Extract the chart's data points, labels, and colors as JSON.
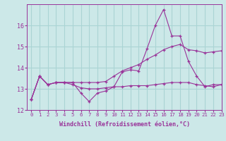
{
  "xlabel": "Windchill (Refroidissement éolien,°C)",
  "bg_color": "#cce8e8",
  "grid_color": "#aad4d4",
  "line_color": "#993399",
  "marker": "+",
  "xlim": [
    -0.5,
    23
  ],
  "ylim": [
    12.0,
    17.0
  ],
  "yticks": [
    12,
    13,
    14,
    15,
    16
  ],
  "xticks": [
    0,
    1,
    2,
    3,
    4,
    5,
    6,
    7,
    8,
    9,
    10,
    11,
    12,
    13,
    14,
    15,
    16,
    17,
    18,
    19,
    20,
    21,
    22,
    23
  ],
  "series": [
    [
      12.5,
      13.6,
      13.2,
      13.3,
      13.3,
      13.3,
      12.8,
      12.4,
      12.8,
      12.9,
      13.1,
      13.8,
      13.9,
      13.85,
      14.9,
      16.0,
      16.75,
      15.5,
      15.5,
      14.3,
      13.6,
      13.1,
      13.2,
      13.2
    ],
    [
      12.5,
      13.6,
      13.2,
      13.3,
      13.3,
      13.2,
      13.05,
      13.0,
      13.0,
      13.05,
      13.1,
      13.1,
      13.15,
      13.15,
      13.15,
      13.2,
      13.25,
      13.3,
      13.3,
      13.3,
      13.2,
      13.15,
      13.1,
      13.2
    ],
    [
      12.5,
      13.6,
      13.2,
      13.3,
      13.3,
      13.3,
      13.3,
      13.3,
      13.3,
      13.35,
      13.6,
      13.85,
      14.0,
      14.15,
      14.4,
      14.6,
      14.85,
      15.0,
      15.1,
      14.85,
      14.8,
      14.7,
      14.75,
      14.8
    ]
  ]
}
